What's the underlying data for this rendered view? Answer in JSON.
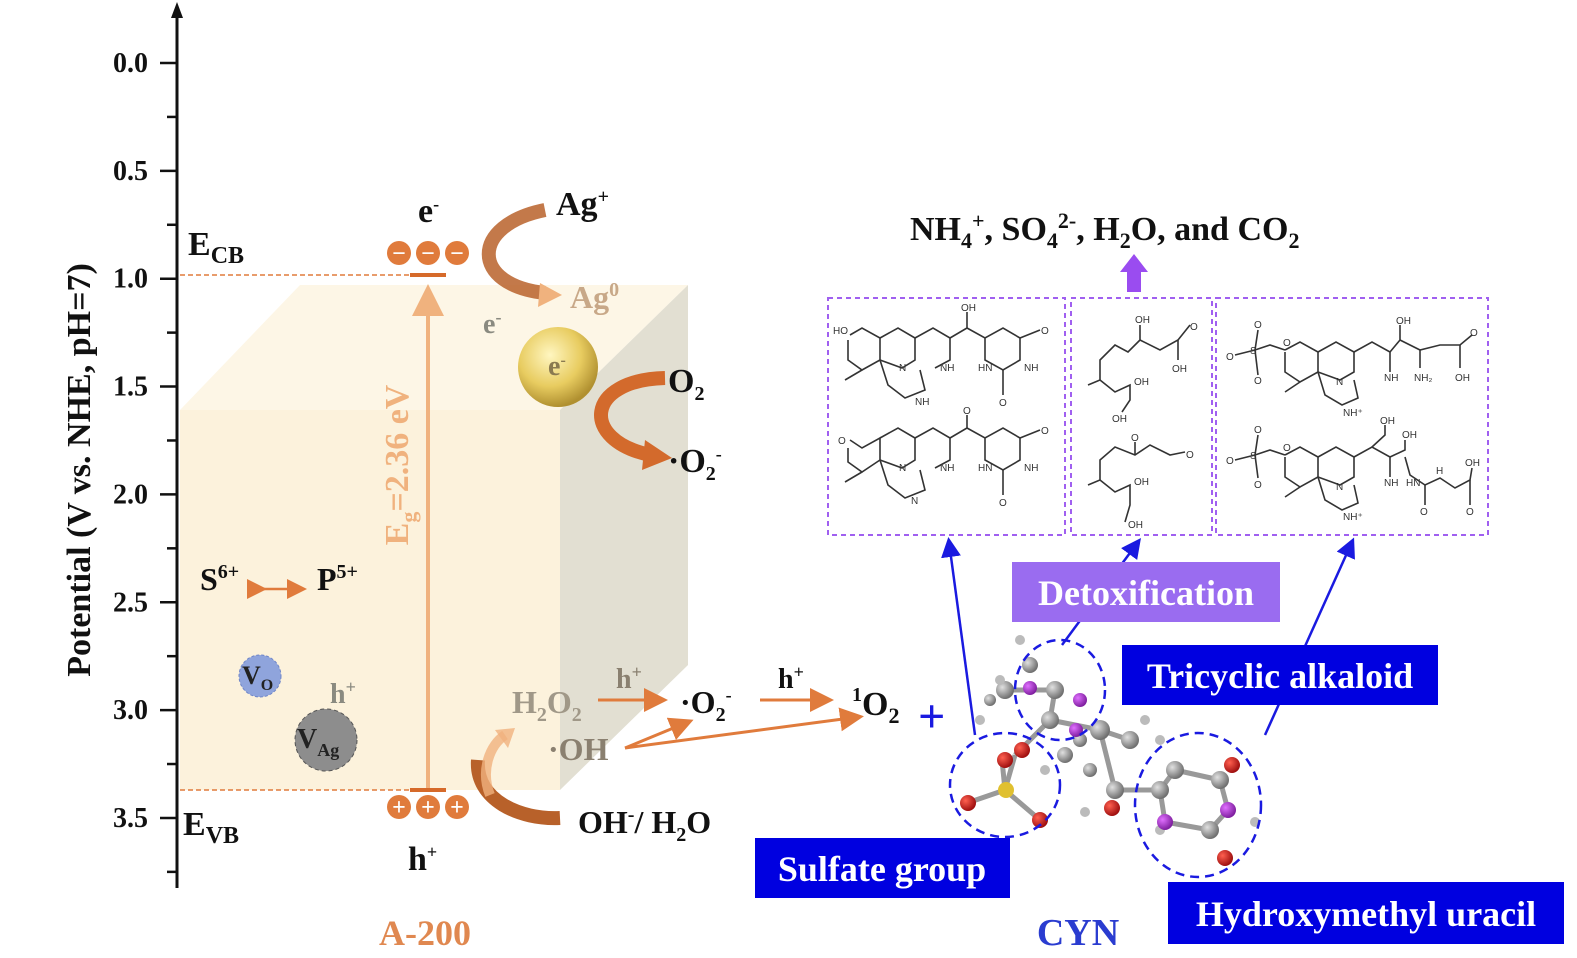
{
  "axis": {
    "label": "Potential (V vs. NHE, pH=7)",
    "ticks": [
      "0.0",
      "0.5",
      "1.0",
      "1.5",
      "2.0",
      "2.5",
      "3.0",
      "3.5"
    ],
    "range": [
      0.0,
      3.75
    ],
    "direction": "increasing downward"
  },
  "band": {
    "ecb": "E",
    "ecb_sub": "CB",
    "ecb_value": 1.0,
    "evb": "E",
    "evb_sub": "VB",
    "evb_value": 3.36,
    "eg": "E",
    "eg_sub": "g",
    "eg_value": "=2.36 eV",
    "electron": "e",
    "electron_sup": "-",
    "hole": "h",
    "hole_sup": "+",
    "minus_symbol": "−",
    "plus_symbol": "+"
  },
  "reactions": {
    "ag_plus": "Ag",
    "ag_plus_sup": "+",
    "ag0": "Ag",
    "ag0_sup": "0",
    "e_transfer": "e",
    "e_transfer_sup": "-",
    "particle_e": "e",
    "particle_e_sup": "-",
    "o2": "O",
    "o2_sub": "2",
    "superoxide": "·O",
    "superoxide_sub": "2",
    "superoxide_sup": "-",
    "s6": "S",
    "s6_sup": "6+",
    "p5": "P",
    "p5_sup": "5+",
    "vo": "V",
    "vo_sub": "O",
    "vag": "V",
    "vag_sub": "Ag",
    "vac_h": "h",
    "vac_h_sup": "+",
    "h2o2": "H",
    "h2o2_sub1": "2",
    "h2o2_mid": "O",
    "h2o2_sub2": "2",
    "h_arrow1": "h",
    "h_arrow1_sup": "+",
    "superoxide2": "·O",
    "superoxide2_sub": "2",
    "superoxide2_sup": "-",
    "h_arrow2": "h",
    "h_arrow2_sup": "+",
    "singlet": "O",
    "singlet_sup": "1",
    "singlet_sub": "2",
    "plus": "+",
    "oh_radical": "·OH",
    "oh_water": "OH",
    "oh_water_sup": "-",
    "oh_water_rest": "/ H",
    "oh_water_sub": "2",
    "oh_water_end": "O"
  },
  "sample_label": "A-200",
  "products": {
    "p1": "NH",
    "p1_sub": "4",
    "p1_sup": "+",
    "sep1": ", SO",
    "p2_sub": "4",
    "p2_sup": "2-",
    "sep2": ", H",
    "p3_sub": "2",
    "p3_rest": "O, and CO",
    "p4_sub": "2"
  },
  "structures": {
    "s1a": [
      "HO",
      "OH",
      "N",
      "NH",
      "HN",
      "NH",
      "O",
      "NH",
      "O"
    ],
    "s1b": [
      "O",
      "O",
      "N",
      "NH",
      "HN",
      "NH",
      "O",
      "N",
      "O"
    ],
    "s2a": [
      "OH",
      "O",
      "OH",
      "OH",
      "OH"
    ],
    "s2b": [
      "O",
      "O",
      "OH",
      "OH"
    ],
    "s3a": [
      "O",
      "O",
      "S",
      "O",
      "O",
      "OH",
      "N",
      "NH",
      "NH₂",
      "O",
      "OH",
      "NH⁺"
    ],
    "s3b": [
      "O",
      "O",
      "S",
      "O",
      "O",
      "OH",
      "OH",
      "N",
      "NH",
      "HN",
      "H",
      "OH",
      "O",
      "O",
      "NH⁺"
    ]
  },
  "tags": {
    "detox": "Detoxification",
    "tricyclic": "Tricyclic alkaloid",
    "sulfate": "Sulfate group",
    "uracil": "Hydroxymethyl uracil"
  },
  "molecule_label": "CYN",
  "colors": {
    "orange": "#e07b3c",
    "light_orange": "#f0b27e",
    "brown": "#b8612a",
    "purple": "#9a6cf0",
    "blue_tag": "#0000e0",
    "cyn_blue": "#2a3cd0",
    "crystal": "#fdf6e6",
    "crystal_side": "#e2dfd2"
  }
}
